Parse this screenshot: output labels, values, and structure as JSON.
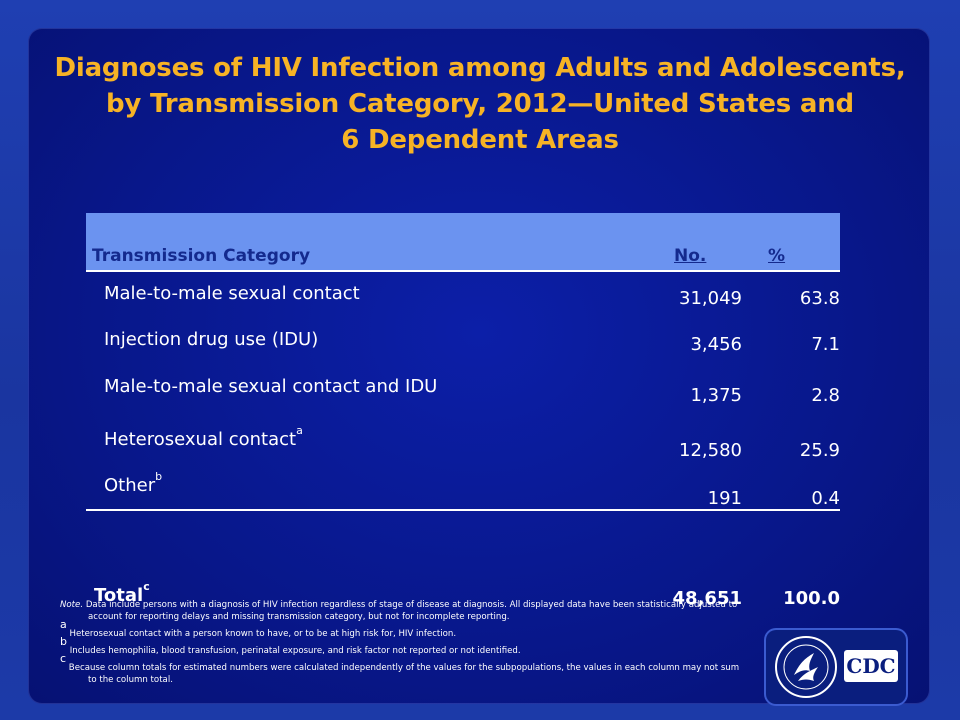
{
  "title": {
    "line1": "Diagnoses of HIV Infection among Adults and Adolescents,",
    "line2": "by Transmission Category, 2012—United States and",
    "line3": "6 Dependent Areas"
  },
  "table": {
    "headers": {
      "category": "Transmission Category",
      "no": "No.",
      "pct": "%"
    },
    "rows": [
      {
        "category": "Male-to-male sexual contact",
        "sup": "",
        "no": "31,049",
        "pct": "63.8"
      },
      {
        "category": "Injection drug use (IDU)",
        "sup": "",
        "no": "3,456",
        "pct": "7.1"
      },
      {
        "category": "Male-to-male sexual contact and IDU",
        "sup": "",
        "no": "1,375",
        "pct": "2.8"
      },
      {
        "category": "Heterosexual contact",
        "sup": "a",
        "no": "12,580",
        "pct": "25.9"
      },
      {
        "category": "Other",
        "sup": "b",
        "no": "191",
        "pct": "0.4"
      }
    ],
    "total": {
      "category": "Total",
      "sup": "c",
      "no": "48,651",
      "pct": "100.0"
    }
  },
  "notes": {
    "note_label": "Note.",
    "note_text": "Data include persons with a diagnosis of HIV infection regardless of stage of disease at diagnosis. All displayed data have been statistically adjusted to account for reporting delays and missing transmission category, but not for incomplete reporting.",
    "fn_a_mark": "a",
    "fn_a": "Heterosexual contact with a person known to have, or to be at high risk for, HIV infection.",
    "fn_b_mark": "b",
    "fn_b": "Includes hemophilia, blood transfusion, perinatal exposure, and risk factor not reported or not identified.",
    "fn_c_mark": "c",
    "fn_c": "Because column totals for estimated numbers were calculated independently of the values for the subpopulations, the values in each column may not sum to the column total."
  },
  "logo": {
    "cdc_text": "CDC"
  },
  "colors": {
    "title": "#f7b325",
    "header_bg": "#6b93f0",
    "header_text": "#142a8e",
    "background": "#08178a"
  }
}
